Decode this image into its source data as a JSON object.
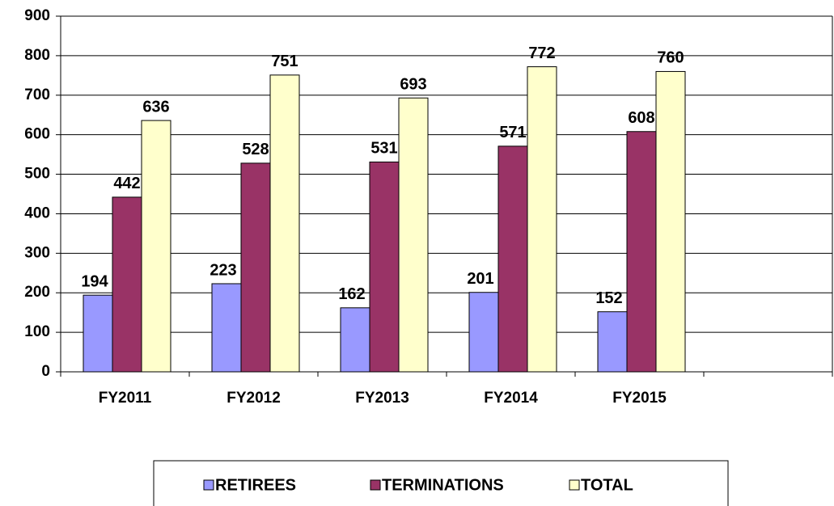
{
  "chart_data": {
    "type": "bar",
    "categories": [
      "FY2011",
      "FY2012",
      "FY2013",
      "FY2014",
      "FY2015",
      null
    ],
    "series": [
      {
        "name": "RETIREES",
        "color": "#9999ff",
        "values": [
          194,
          223,
          162,
          201,
          152,
          null
        ]
      },
      {
        "name": "TERMINATIONS",
        "color": "#993366",
        "values": [
          442,
          528,
          531,
          571,
          608,
          null
        ]
      },
      {
        "name": "TOTAL",
        "color": "#ffffcc",
        "values": [
          636,
          751,
          693,
          772,
          760,
          null
        ]
      }
    ],
    "ylim": [
      0,
      900
    ],
    "yticks": [
      0,
      100,
      200,
      300,
      400,
      500,
      600,
      700,
      800,
      900
    ],
    "grid": true,
    "legend": "bottom"
  }
}
